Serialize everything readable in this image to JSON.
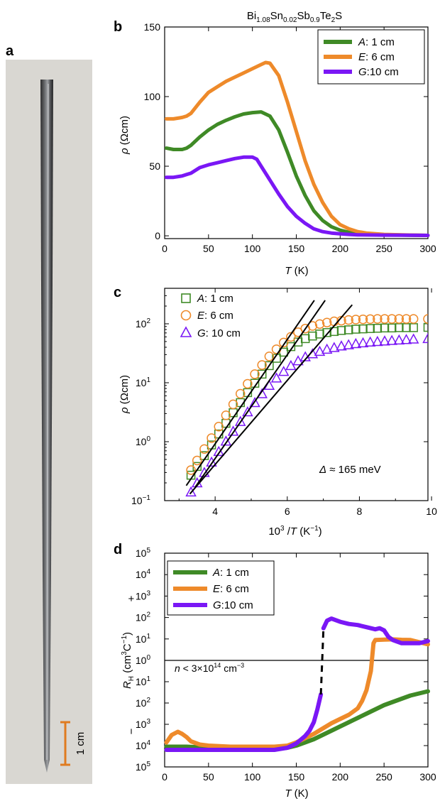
{
  "panels": {
    "a": {
      "label": "a",
      "scale_bar": "1 cm"
    },
    "b": {
      "label": "b"
    },
    "c": {
      "label": "c"
    },
    "d": {
      "label": "d"
    }
  },
  "colors": {
    "A": "#3f8a26",
    "E": "#ee8a2a",
    "G": "#7a17f5",
    "fit": "#000000",
    "rod_bg": "#d9d7d2",
    "scale_bar": "#e07b20"
  },
  "chart_data": [
    {
      "panel": "b",
      "type": "line",
      "title": "Bi1.08Sn0.02Sb0.9Te2S",
      "title_parts": {
        "base": "Bi",
        "s1": "1.08",
        "t2": "Sn",
        "s2": "0.02",
        "t3": "Sb",
        "s3": "0.9",
        "t4": "Te",
        "s4": "2",
        "t5": "S"
      },
      "xlabel": {
        "var": "T",
        "unit": " (K)"
      },
      "ylabel": {
        "var": "ρ",
        "unit": " (Ωcm)"
      },
      "xlim": [
        0,
        300
      ],
      "ylim": [
        -2,
        150
      ],
      "xticks": [
        0,
        50,
        100,
        150,
        200,
        250,
        300
      ],
      "yticks": [
        0,
        50,
        100,
        150
      ],
      "legend_position": "top-right",
      "series": [
        {
          "name": "A",
          "legend": ": 1 cm",
          "color": "#3f8a26",
          "x": [
            2,
            10,
            20,
            25,
            30,
            40,
            50,
            60,
            70,
            80,
            90,
            100,
            110,
            120,
            130,
            140,
            150,
            160,
            170,
            180,
            190,
            200,
            210,
            220,
            230,
            250,
            275,
            300
          ],
          "y": [
            63,
            62,
            62,
            63,
            65,
            71,
            76,
            80,
            83,
            85.5,
            87.5,
            88.5,
            89,
            86,
            76,
            60,
            43,
            29,
            18,
            11,
            6.5,
            4,
            2.5,
            1.7,
            1.2,
            0.8,
            0.5,
            0.3
          ]
        },
        {
          "name": "E",
          "legend": ": 6 cm",
          "color": "#ee8a2a",
          "x": [
            2,
            10,
            20,
            25,
            30,
            40,
            50,
            60,
            70,
            80,
            90,
            100,
            110,
            115,
            120,
            130,
            140,
            150,
            160,
            170,
            180,
            190,
            200,
            210,
            220,
            230,
            250,
            275,
            300
          ],
          "y": [
            84,
            84,
            85,
            86,
            88,
            96,
            103,
            107,
            111,
            114,
            117,
            120,
            123,
            124.5,
            124,
            115,
            96,
            75,
            54,
            37,
            24,
            14,
            8,
            5,
            3,
            2,
            1,
            0.6,
            0.3
          ]
        },
        {
          "name": "G",
          "legend": ":10 cm",
          "color": "#7a17f5",
          "x": [
            2,
            10,
            20,
            25,
            30,
            40,
            50,
            60,
            70,
            80,
            90,
            100,
            105,
            110,
            120,
            130,
            140,
            150,
            160,
            170,
            180,
            190,
            200,
            210,
            220,
            250,
            275,
            300
          ],
          "y": [
            42,
            42,
            43,
            44,
            45,
            49,
            51,
            52.5,
            54,
            55.5,
            56.5,
            56.5,
            55,
            50,
            40,
            30,
            21,
            14,
            9,
            5,
            3,
            2,
            1.4,
            1,
            0.7,
            0.5,
            0.4,
            0.3
          ]
        }
      ]
    },
    {
      "panel": "c",
      "type": "scatter",
      "xlabel": {
        "pre": "10",
        "sup": "3",
        "mid": " /",
        "var": "T",
        "unit": " (K",
        "usup": "−1",
        "end": ")"
      },
      "ylabel": {
        "var": "ρ",
        "unit": " (Ωcm)"
      },
      "xlim": [
        2.6,
        9.9
      ],
      "ylim": [
        0.1,
        400
      ],
      "yscale": "log",
      "xticks": [
        4,
        6,
        8,
        10
      ],
      "yticks": [
        {
          "base": "10",
          "exp": "−1",
          "v": 0.1
        },
        {
          "base": "10",
          "exp": "0",
          "v": 1
        },
        {
          "base": "10",
          "exp": "1",
          "v": 10
        },
        {
          "base": "10",
          "exp": "2",
          "v": 100
        }
      ],
      "legend_position": "top-left",
      "annotation": {
        "var": "Δ",
        "text": " ≈ 165 meV"
      },
      "series": [
        {
          "name": "A",
          "legend": ": 1 cm",
          "marker": "square",
          "color": "#3f8a26",
          "x": [
            3.33,
            3.5,
            3.7,
            3.9,
            4.1,
            4.3,
            4.5,
            4.7,
            4.9,
            5.1,
            5.3,
            5.5,
            5.7,
            5.9,
            6.1,
            6.3,
            6.5,
            6.7,
            6.9,
            7.1,
            7.3,
            7.5,
            7.7,
            7.9,
            8.1,
            8.3,
            8.5,
            8.7,
            8.9,
            9.1,
            9.3,
            9.5,
            9.9
          ],
          "y": [
            0.27,
            0.38,
            0.58,
            0.88,
            1.35,
            2.05,
            3.1,
            4.6,
            6.8,
            9.8,
            14,
            19.5,
            26,
            33,
            41,
            49,
            56,
            62,
            67,
            71,
            74,
            77,
            79,
            81,
            82,
            83,
            84,
            85,
            85,
            86,
            86,
            86,
            87
          ]
        },
        {
          "name": "E",
          "legend": ": 6 cm",
          "marker": "circle",
          "color": "#ee8a2a",
          "x": [
            3.33,
            3.5,
            3.7,
            3.9,
            4.1,
            4.3,
            4.5,
            4.7,
            4.9,
            5.1,
            5.3,
            5.5,
            5.7,
            5.9,
            6.1,
            6.3,
            6.5,
            6.7,
            6.9,
            7.1,
            7.3,
            7.5,
            7.7,
            7.9,
            8.1,
            8.3,
            8.5,
            8.7,
            8.9,
            9.1,
            9.3,
            9.5,
            9.9
          ],
          "y": [
            0.33,
            0.48,
            0.75,
            1.15,
            1.8,
            2.8,
            4.3,
            6.5,
            9.6,
            14,
            20,
            28,
            37,
            48,
            60,
            72,
            83,
            92,
            99,
            105,
            110,
            113,
            116,
            118,
            119,
            120,
            121,
            121,
            121,
            121,
            121,
            121,
            121
          ]
        },
        {
          "name": "G",
          "legend": ": 10 cm",
          "marker": "triangle",
          "color": "#7a17f5",
          "x": [
            3.33,
            3.5,
            3.7,
            3.9,
            4.1,
            4.3,
            4.5,
            4.7,
            4.9,
            5.1,
            5.3,
            5.5,
            5.7,
            5.9,
            6.1,
            6.3,
            6.5,
            6.7,
            6.9,
            7.1,
            7.3,
            7.5,
            7.7,
            7.9,
            8.1,
            8.3,
            8.5,
            8.7,
            8.9,
            9.1,
            9.3,
            9.5,
            9.9
          ],
          "y": [
            0.14,
            0.2,
            0.3,
            0.45,
            0.68,
            1.02,
            1.5,
            2.2,
            3.2,
            4.6,
            6.5,
            9,
            12,
            15.5,
            19.5,
            23.5,
            27.5,
            31,
            34,
            37,
            39.5,
            42,
            44,
            46,
            47.5,
            49,
            50,
            51,
            52,
            53,
            54,
            55,
            56
          ]
        }
      ],
      "fits": [
        {
          "x": [
            3.2,
            6.75
          ],
          "y": [
            0.18,
            250
          ]
        },
        {
          "x": [
            3.45,
            7.05
          ],
          "y": [
            0.17,
            250
          ]
        },
        {
          "x": [
            3.3,
            7.8
          ],
          "y": [
            0.13,
            210
          ]
        }
      ]
    },
    {
      "panel": "d",
      "type": "line",
      "xlabel": {
        "var": "T",
        "unit": " (K)"
      },
      "ylabel": {
        "var": "R",
        "sub": "H",
        "unit": " (cm",
        "usup": "3",
        "mid": "C",
        "usup2": "−1",
        "end": ")"
      },
      "xlim": [
        0,
        300
      ],
      "xticks": [
        0,
        50,
        100,
        150,
        200,
        250,
        300
      ],
      "yscale": "split-log",
      "upper": {
        "sign": "+",
        "yticks": [
          {
            "base": "10",
            "exp": "5",
            "v": 5
          },
          {
            "base": "10",
            "exp": "4",
            "v": 4
          },
          {
            "base": "10",
            "exp": "3",
            "v": 3
          },
          {
            "base": "10",
            "exp": "2",
            "v": 2
          },
          {
            "base": "10",
            "exp": "1",
            "v": 1
          },
          {
            "base": "10",
            "exp": "0",
            "v": 0
          }
        ]
      },
      "lower": {
        "sign": "−",
        "yticks": [
          {
            "base": "10",
            "exp": "1",
            "v": 1
          },
          {
            "base": "10",
            "exp": "2",
            "v": 2
          },
          {
            "base": "10",
            "exp": "3",
            "v": 3
          },
          {
            "base": "10",
            "exp": "4",
            "v": 4
          },
          {
            "base": "10",
            "exp": "5",
            "v": 5
          }
        ]
      },
      "annotation": {
        "var": "n",
        "text": " < 3×10",
        "sup": "14",
        "unit": " cm",
        "usup": "−3"
      },
      "legend_position": "top-left",
      "series": [
        {
          "name": "A",
          "legend": ": 1 cm",
          "color": "#3f8a26",
          "x": [
            2,
            25,
            50,
            75,
            100,
            125,
            140,
            150,
            160,
            170,
            180,
            190,
            200,
            210,
            220,
            230,
            240,
            250,
            260,
            270,
            280,
            290,
            300
          ],
          "y": [
            -4.05,
            -4.05,
            -4.1,
            -4.15,
            -4.15,
            -4.15,
            -4.1,
            -4.0,
            -3.85,
            -3.7,
            -3.5,
            -3.3,
            -3.1,
            -2.9,
            -2.7,
            -2.5,
            -2.3,
            -2.1,
            -1.95,
            -1.8,
            -1.65,
            -1.55,
            -1.45
          ]
        },
        {
          "name": "E",
          "legend": ": 6 cm",
          "color": "#ee8a2a",
          "x": [
            2,
            8,
            15,
            20,
            25,
            30,
            40,
            50,
            75,
            100,
            125,
            140,
            150,
            160,
            170,
            180,
            190,
            200,
            210,
            220,
            225,
            230,
            235,
            238,
            240,
            250,
            260,
            270,
            280,
            290,
            300
          ],
          "y": [
            -3.85,
            -3.5,
            -3.35,
            -3.45,
            -3.6,
            -3.8,
            -3.95,
            -4.0,
            -4.05,
            -4.05,
            -4.05,
            -4.0,
            -3.85,
            -3.65,
            -3.45,
            -3.2,
            -2.95,
            -2.75,
            -2.55,
            -2.25,
            -1.9,
            -1.4,
            -0.5,
            0.8,
            0.95,
            0.97,
            0.98,
            0.96,
            0.95,
            0.85,
            0.75
          ]
        },
        {
          "name": "G",
          "legend": ":10 cm",
          "color": "#7a17f5",
          "x": [
            2,
            25,
            50,
            75,
            100,
            125,
            140,
            150,
            160,
            165,
            170,
            174,
            178
          ],
          "y": [
            -4.2,
            -4.2,
            -4.2,
            -4.2,
            -4.2,
            -4.2,
            -4.1,
            -3.9,
            -3.55,
            -3.3,
            -2.9,
            -2.3,
            -1.6
          ],
          "x2": [
            181,
            185,
            190,
            200,
            210,
            220,
            230,
            240,
            245,
            250,
            255,
            260,
            270,
            280,
            290,
            300
          ],
          "y2": [
            1.5,
            1.85,
            1.95,
            1.8,
            1.7,
            1.65,
            1.55,
            1.45,
            1.5,
            1.4,
            1.1,
            0.95,
            0.8,
            0.8,
            0.8,
            0.9
          ],
          "dash_x": [
            178,
            181
          ],
          "dash_y": [
            -1.6,
            1.5
          ]
        }
      ]
    }
  ]
}
